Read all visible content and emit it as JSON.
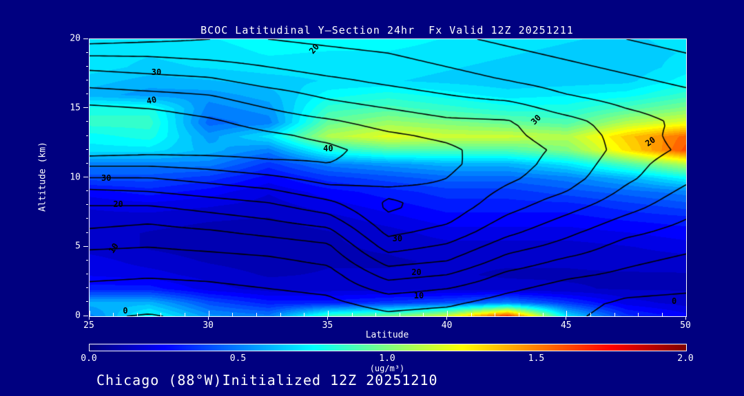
{
  "title": "BCOC Latitudinal Y—Section 24hr  Fx Valid 12Z 20251211",
  "footer": {
    "text": "Chicago (88°W)Initialized 12Z 20251210"
  },
  "chart_data": {
    "type": "heatmap",
    "subtype": "filled-contour-cross-section-with-line-contour-overlay",
    "title": "BCOC Latitudinal Y—Section 24hr  Fx Valid 12Z 20251211",
    "x": {
      "label": "Latitude",
      "min": 25,
      "max": 50,
      "major_ticks": [
        25,
        30,
        35,
        40,
        45,
        50
      ],
      "major_tick_labels": [
        "25",
        "30",
        "35",
        "40",
        "45",
        "50"
      ],
      "minor_tick_step": 1
    },
    "y": {
      "label": "Altitude (km)",
      "min": 0,
      "max": 20,
      "major_ticks": [
        0,
        5,
        10,
        15,
        20
      ],
      "major_tick_labels": [
        "0",
        "5",
        "10",
        "15",
        "20"
      ],
      "minor_tick_step": 1
    },
    "colorbar": {
      "min": 0.0,
      "max": 2.0,
      "tick_labels": [
        "0.0",
        "0.5",
        "1.0",
        "1.5",
        "2.0"
      ],
      "unit": "(ug/m³)",
      "colormap": "jet",
      "fill_quantize_step": 0.05
    },
    "fill_field": {
      "name": "BCOC concentration (ug/m3)",
      "lats": [
        25,
        27.5,
        30,
        32.5,
        35,
        37.5,
        40,
        42.5,
        45,
        47.5,
        50
      ],
      "alts": [
        0,
        1,
        2,
        3,
        4,
        5,
        6,
        7,
        8,
        9,
        10,
        11,
        12,
        13,
        14,
        15,
        16,
        17,
        18,
        19,
        20
      ],
      "values_by_alt": [
        [
          0.5,
          0.78,
          0.55,
          0.5,
          0.9,
          1.0,
          1.2,
          1.7,
          0.7,
          0.35,
          0.25
        ],
        [
          0.6,
          0.6,
          0.4,
          0.3,
          0.3,
          0.35,
          0.4,
          0.5,
          0.35,
          0.2,
          0.15
        ],
        [
          0.3,
          0.3,
          0.2,
          0.15,
          0.15,
          0.15,
          0.15,
          0.14,
          0.13,
          0.12,
          0.12
        ],
        [
          0.22,
          0.2,
          0.15,
          0.12,
          0.13,
          0.13,
          0.13,
          0.12,
          0.12,
          0.12,
          0.12
        ],
        [
          0.2,
          0.15,
          0.12,
          0.1,
          0.12,
          0.12,
          0.13,
          0.13,
          0.13,
          0.14,
          0.15
        ],
        [
          0.15,
          0.12,
          0.1,
          0.1,
          0.12,
          0.13,
          0.15,
          0.15,
          0.15,
          0.17,
          0.2
        ],
        [
          0.15,
          0.12,
          0.1,
          0.1,
          0.12,
          0.15,
          0.2,
          0.2,
          0.2,
          0.22,
          0.25
        ],
        [
          0.16,
          0.15,
          0.13,
          0.12,
          0.15,
          0.2,
          0.25,
          0.25,
          0.25,
          0.28,
          0.3
        ],
        [
          0.18,
          0.2,
          0.18,
          0.15,
          0.2,
          0.25,
          0.3,
          0.3,
          0.3,
          0.35,
          0.4
        ],
        [
          0.25,
          0.3,
          0.25,
          0.18,
          0.25,
          0.3,
          0.35,
          0.35,
          0.4,
          0.45,
          0.5
        ],
        [
          0.4,
          0.4,
          0.35,
          0.25,
          0.35,
          0.4,
          0.45,
          0.45,
          0.5,
          0.6,
          0.75
        ],
        [
          0.5,
          0.5,
          0.5,
          0.35,
          0.5,
          0.55,
          0.6,
          0.6,
          0.7,
          0.9,
          1.1
        ],
        [
          0.7,
          0.7,
          0.6,
          0.5,
          0.8,
          0.9,
          0.9,
          0.9,
          1.0,
          1.3,
          1.6
        ],
        [
          0.75,
          0.8,
          0.55,
          0.7,
          1.1,
          1.2,
          1.15,
          1.15,
          1.1,
          1.35,
          1.55
        ],
        [
          0.85,
          0.85,
          0.45,
          0.5,
          0.95,
          1.05,
          1.0,
          0.95,
          0.9,
          1.1,
          1.2
        ],
        [
          0.8,
          0.8,
          0.5,
          0.55,
          0.85,
          0.9,
          0.85,
          0.8,
          0.8,
          0.9,
          1.0
        ],
        [
          0.6,
          0.55,
          0.55,
          0.6,
          0.75,
          0.8,
          0.75,
          0.7,
          0.72,
          0.75,
          0.85
        ],
        [
          0.65,
          0.6,
          0.62,
          0.65,
          0.68,
          0.68,
          0.66,
          0.64,
          0.65,
          0.66,
          0.75
        ],
        [
          0.7,
          0.66,
          0.68,
          0.7,
          0.7,
          0.7,
          0.68,
          0.66,
          0.65,
          0.64,
          0.7
        ],
        [
          0.7,
          0.68,
          0.7,
          0.73,
          0.72,
          0.72,
          0.7,
          0.68,
          0.66,
          0.65,
          0.68
        ],
        [
          0.68,
          0.7,
          0.72,
          0.75,
          0.75,
          0.75,
          0.72,
          0.7,
          0.68,
          0.66,
          0.7
        ]
      ]
    },
    "overlay_contours": {
      "levels": [
        0,
        5,
        10,
        15,
        20,
        25,
        30,
        35,
        40,
        45
      ],
      "labeled_levels": [
        0,
        10,
        20,
        30,
        40
      ],
      "values_by_alt": [
        [
          0.5,
          -0.3,
          1,
          1.5,
          2,
          4,
          3,
          1,
          0.5,
          -1,
          -2
        ],
        [
          2,
          1.5,
          2,
          3,
          4,
          7,
          6,
          3,
          1,
          -0.5,
          -1
        ],
        [
          4,
          3.5,
          4,
          5,
          6,
          12,
          10,
          6,
          3,
          1,
          0.5
        ],
        [
          6,
          5.5,
          6,
          7,
          8,
          17,
          15,
          9,
          6,
          4,
          2
        ],
        [
          8,
          7.5,
          8,
          9,
          11,
          22,
          20,
          13,
          9,
          6,
          4
        ],
        [
          10.5,
          10,
          11,
          12,
          14,
          27,
          24,
          17,
          13,
          8,
          6
        ],
        [
          14,
          13,
          14,
          16,
          18,
          31,
          28,
          21,
          16,
          11,
          8
        ],
        [
          17,
          16,
          18,
          20,
          23,
          34,
          31,
          24,
          19,
          14,
          10
        ],
        [
          20,
          20,
          22,
          24,
          28,
          36,
          33,
          27,
          22,
          17,
          12
        ],
        [
          24,
          25,
          27,
          29,
          33,
          34,
          34,
          29,
          25,
          19,
          14
        ],
        [
          30,
          30,
          32,
          34,
          37,
          37,
          35,
          31,
          27,
          21,
          16
        ],
        [
          36,
          36,
          37,
          39,
          40,
          38,
          36,
          32,
          28,
          22,
          17
        ],
        [
          43,
          42,
          42,
          42,
          41,
          38,
          36,
          32,
          29,
          23,
          19
        ],
        [
          45,
          45,
          43,
          41,
          39,
          36,
          34,
          31,
          28,
          23,
          18
        ],
        [
          44,
          43,
          41,
          38,
          36,
          33,
          31,
          30.5,
          27,
          22,
          19
        ],
        [
          41,
          40,
          38,
          35,
          32,
          30,
          28,
          27.5,
          23,
          20,
          18
        ],
        [
          37,
          36,
          35,
          32,
          29,
          27,
          25,
          23,
          20,
          18,
          16
        ],
        [
          33,
          32,
          31,
          28,
          26,
          24,
          22,
          20,
          18,
          16,
          14
        ],
        [
          29,
          28,
          27,
          25,
          23,
          22,
          20,
          18,
          16,
          14,
          12
        ],
        [
          24,
          24,
          23,
          22,
          21,
          20,
          18,
          16,
          14,
          12,
          10
        ],
        [
          18,
          19,
          20,
          20,
          19,
          18,
          16,
          14,
          12,
          10,
          8
        ]
      ],
      "labels": [
        {
          "lat": 34.4,
          "alt": 19.3,
          "text": "20",
          "rot": -50
        },
        {
          "lat": 27.8,
          "alt": 17.6,
          "text": "30",
          "rot": 0
        },
        {
          "lat": 27.6,
          "alt": 15.6,
          "text": "40",
          "rot": -12
        },
        {
          "lat": 25.7,
          "alt": 10.0,
          "text": "30",
          "rot": 0
        },
        {
          "lat": 26.2,
          "alt": 8.1,
          "text": "20",
          "rot": 0
        },
        {
          "lat": 26.0,
          "alt": 4.9,
          "text": "10",
          "rot": -55
        },
        {
          "lat": 35.0,
          "alt": 12.1,
          "text": "40",
          "rot": 0
        },
        {
          "lat": 37.9,
          "alt": 5.6,
          "text": "30",
          "rot": 0
        },
        {
          "lat": 38.7,
          "alt": 3.2,
          "text": "20",
          "rot": 0
        },
        {
          "lat": 38.8,
          "alt": 1.5,
          "text": "10",
          "rot": 0
        },
        {
          "lat": 43.7,
          "alt": 14.2,
          "text": "30",
          "rot": -45
        },
        {
          "lat": 48.5,
          "alt": 12.6,
          "text": "20",
          "rot": -35
        },
        {
          "lat": 49.5,
          "alt": 1.1,
          "text": "0",
          "rot": 0
        },
        {
          "lat": 26.5,
          "alt": 0.4,
          "text": "0",
          "rot": 0
        }
      ]
    }
  }
}
